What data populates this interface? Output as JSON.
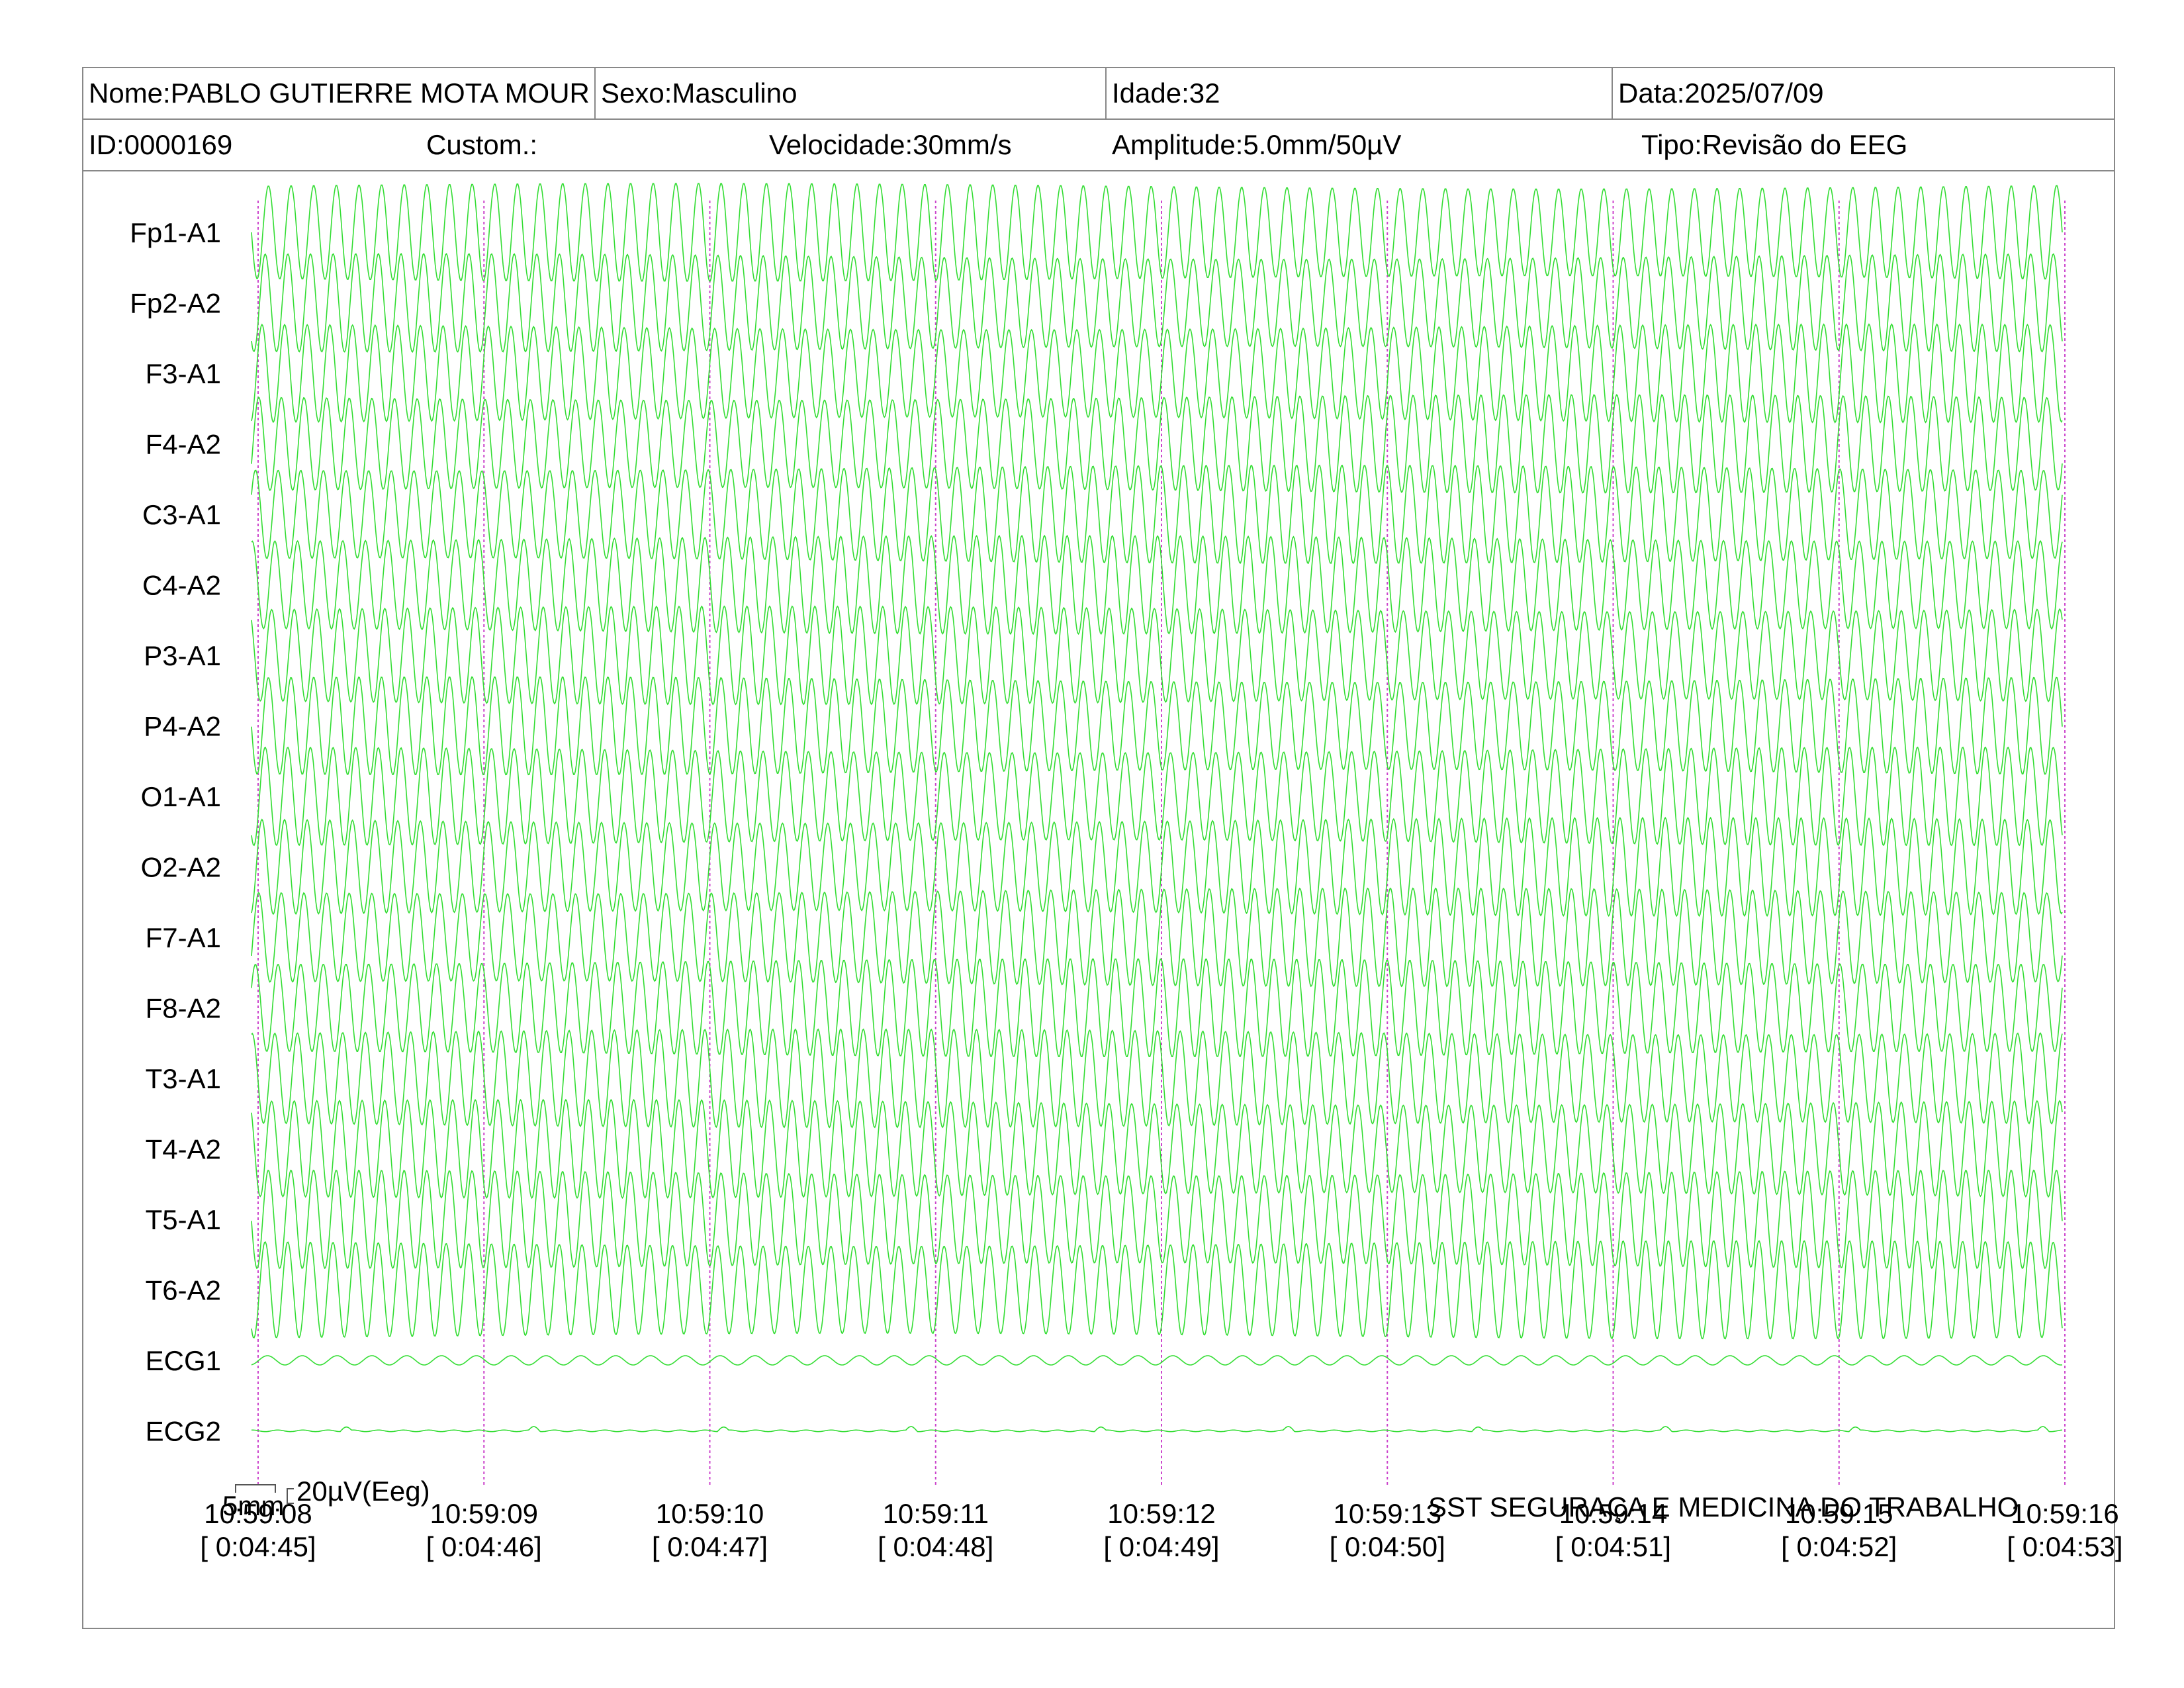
{
  "header": {
    "nome": "Nome:PABLO GUTIERRE MOTA MOUR",
    "sexo": "Sexo:Masculino",
    "idade": "Idade:32",
    "data": "Data:2025/07/09",
    "id": "ID:0000169",
    "custom": "Custom.:",
    "velocidade": "Velocidade:30mm/s",
    "amplitude": "Amplitude:5.0mm/50µV",
    "tipo": "Tipo:Revisão do EEG"
  },
  "scale": {
    "time": "5mm",
    "amplitude": "20µV(Eeg)"
  },
  "footer": {
    "company": "SST SEGURAÇA E MEDICINA DO TRABALHO"
  },
  "colors": {
    "trace": "#33dd33",
    "marker": "#cc44cc",
    "border": "#888888"
  },
  "chart_data": {
    "type": "line",
    "title": "",
    "channels": [
      "Fp1-A1",
      "Fp2-A2",
      "F3-A1",
      "F4-A2",
      "C3-A1",
      "C4-A2",
      "P3-A1",
      "P4-A2",
      "O1-A1",
      "O2-A2",
      "F7-A1",
      "F8-A2",
      "T3-A1",
      "T4-A2",
      "T5-A1",
      "T6-A2",
      "ECG1",
      "ECG2"
    ],
    "x_ticks": [
      {
        "time": "10:59:08",
        "elapsed": "[ 0:04:45]"
      },
      {
        "time": "10:59:09",
        "elapsed": "[ 0:04:46]"
      },
      {
        "time": "10:59:10",
        "elapsed": "[ 0:04:47]"
      },
      {
        "time": "10:59:11",
        "elapsed": "[ 0:04:48]"
      },
      {
        "time": "10:59:12",
        "elapsed": "[ 0:04:49]"
      },
      {
        "time": "10:59:13",
        "elapsed": "[ 0:04:50]"
      },
      {
        "time": "10:59:14",
        "elapsed": "[ 0:04:51]"
      },
      {
        "time": "10:59:15",
        "elapsed": "[ 0:04:52]"
      },
      {
        "time": "10:59:16",
        "elapsed": "[ 0:04:53]"
      }
    ],
    "xlim_seconds": [
      0,
      8
    ],
    "eeg_frequency_hz": 10,
    "grid": "vertical dotted markers at each second",
    "legend": "none"
  }
}
